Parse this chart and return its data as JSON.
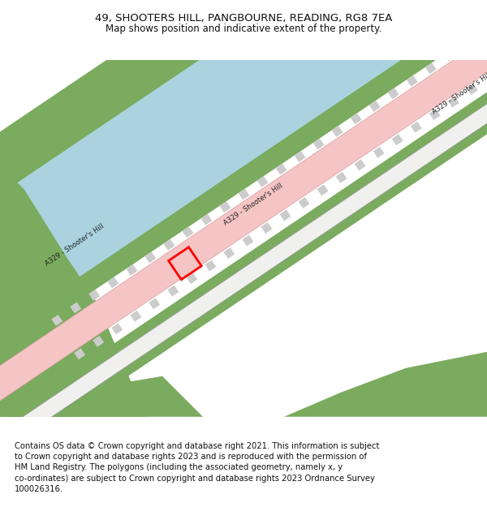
{
  "title_line1": "49, SHOOTERS HILL, PANGBOURNE, READING, RG8 7EA",
  "title_line2": "Map shows position and indicative extent of the property.",
  "footer": "Contains OS data © Crown copyright and database right 2021. This information is subject\nto Crown copyright and database rights 2023 and is reproduced with the permission of\nHM Land Registry. The polygons (including the associated geometry, namely x, y\nco-ordinates) are subject to Crown copyright and database rights 2023 Ordnance Survey\n100026316.",
  "bg_color": "#ffffff",
  "map_bg": "#f8f8f5",
  "river_color": "#aad3df",
  "stream_color": "#aad3df",
  "green_color": "#7aab5e",
  "road_pink": "#f5c4c4",
  "road_edge": "#d8a0a0",
  "road_white": "#ffffff",
  "property_color": "#ff0000",
  "road_label": "A329 - Shooter's Hill",
  "title_fontsize": 9.5,
  "subtitle_fontsize": 8.5,
  "footer_fontsize": 7.2
}
